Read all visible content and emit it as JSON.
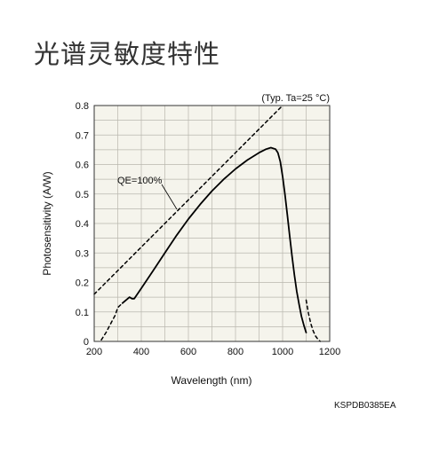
{
  "page": {
    "title": "光谱灵敏度特性",
    "document_code": "KSPDB0385EA"
  },
  "chart_data": {
    "type": "line",
    "title": "",
    "condition_note": "(Typ. Ta=25 °C)",
    "xlabel": "Wavelength (nm)",
    "ylabel": "Photosensitivity (A/W)",
    "xlim": [
      200,
      1200
    ],
    "ylim": [
      0,
      0.8
    ],
    "x_ticks": [
      200,
      400,
      600,
      800,
      1000,
      1200
    ],
    "y_ticks": [
      0,
      0.1,
      0.2,
      0.3,
      0.4,
      0.5,
      0.6,
      0.7,
      0.8
    ],
    "grid": true,
    "plot_background": "#f5f4ec",
    "annotations": [
      {
        "text": "QE=100%",
        "target": "QE=100%"
      }
    ],
    "series": [
      {
        "name": "",
        "style": "solid",
        "color": "#000000",
        "x": [
          320,
          335,
          350,
          360,
          370,
          400,
          450,
          500,
          550,
          600,
          650,
          700,
          750,
          800,
          850,
          900,
          930,
          950,
          970,
          980,
          990,
          1000,
          1010,
          1020,
          1030,
          1040,
          1050,
          1060,
          1070,
          1080,
          1090,
          1100
        ],
        "y": [
          0.13,
          0.14,
          0.15,
          0.145,
          0.145,
          0.18,
          0.24,
          0.3,
          0.36,
          0.415,
          0.465,
          0.51,
          0.55,
          0.585,
          0.615,
          0.64,
          0.652,
          0.657,
          0.652,
          0.64,
          0.61,
          0.56,
          0.5,
          0.43,
          0.36,
          0.29,
          0.225,
          0.17,
          0.125,
          0.085,
          0.055,
          0.03
        ]
      },
      {
        "name": "QE=100%",
        "style": "dashed",
        "color": "#000000",
        "x": [
          200,
          1000
        ],
        "y": [
          0.16,
          0.8
        ]
      },
      {
        "name": "",
        "style": "dashed",
        "color": "#000000",
        "x": [
          230,
          250,
          270,
          290,
          300,
          320
        ],
        "y": [
          0.005,
          0.03,
          0.06,
          0.09,
          0.115,
          0.13
        ]
      },
      {
        "name": "",
        "style": "dashed",
        "color": "#000000",
        "x": [
          1100,
          1110,
          1120,
          1130,
          1140,
          1150,
          1160
        ],
        "y": [
          0.14,
          0.095,
          0.06,
          0.035,
          0.018,
          0.007,
          0.0
        ]
      }
    ]
  }
}
